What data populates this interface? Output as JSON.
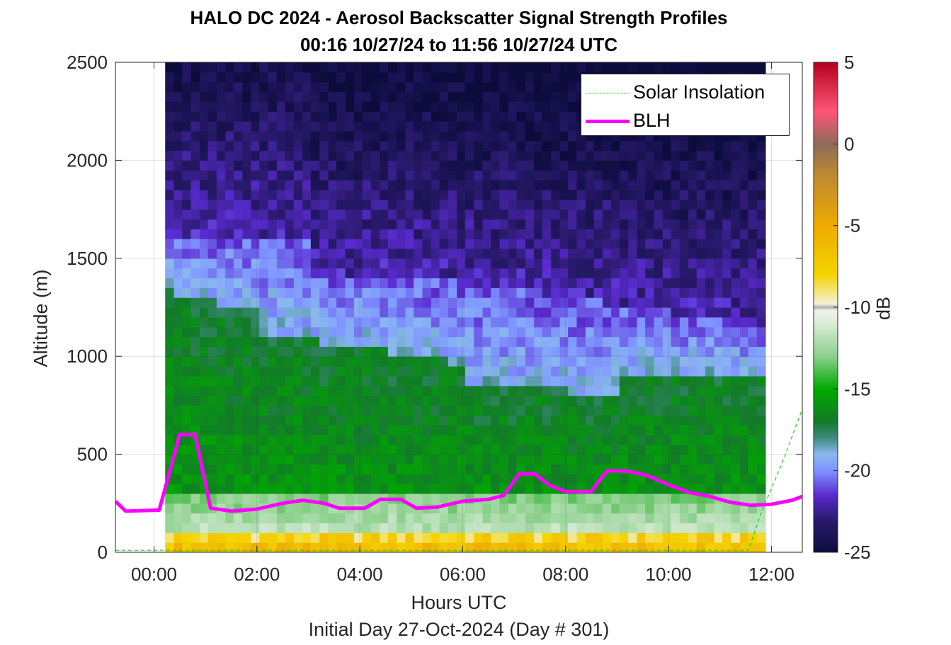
{
  "title_line1": "HALO DC 2024 - Aerosol Backscatter Signal Strength Profiles",
  "title_line2": "00:16 10/27/24 to 11:56 10/27/24  UTC",
  "xlabel": "Hours UTC",
  "xsublabel": "Initial Day 27-Oct-2024 (Day # 301)",
  "ylabel": "Altitude (m)",
  "colorbar_label": "dB",
  "legend": [
    {
      "label": "Solar Insolation",
      "color": "#22cc22",
      "style": "dashed"
    },
    {
      "label": "BLH",
      "color": "#ff00ff",
      "style": "solid"
    }
  ],
  "chart_data": {
    "type": "heatmap",
    "xlim": [
      -0.75,
      12.6
    ],
    "ylim": [
      0,
      2500
    ],
    "xticks": [
      0,
      2,
      4,
      6,
      8,
      10,
      12
    ],
    "xtick_labels": [
      "00:00",
      "02:00",
      "04:00",
      "06:00",
      "08:00",
      "10:00",
      "12:00"
    ],
    "yticks": [
      0,
      500,
      1000,
      1500,
      2000,
      2500
    ],
    "ytick_labels": [
      "0",
      "500",
      "1000",
      "1500",
      "2000",
      "2500"
    ],
    "grid": true,
    "legend_position": "top-right",
    "colorbar": {
      "clim": [
        -25,
        5
      ],
      "ticks": [
        5,
        0,
        -5,
        -10,
        -15,
        -20,
        -25
      ],
      "tick_labels": [
        "5",
        "0",
        "-5",
        "-10",
        "-15",
        "-20",
        "-25"
      ],
      "colormap_stops": [
        {
          "value": -25,
          "color": "#0c0c3c"
        },
        {
          "value": -23,
          "color": "#2a1a6e"
        },
        {
          "value": -21.5,
          "color": "#5a2bd0"
        },
        {
          "value": -20,
          "color": "#7f94ff"
        },
        {
          "value": -19,
          "color": "#8ab8f0"
        },
        {
          "value": -18,
          "color": "#3f8a80"
        },
        {
          "value": -17,
          "color": "#127a28"
        },
        {
          "value": -15,
          "color": "#00aa00"
        },
        {
          "value": -13,
          "color": "#8cd08c"
        },
        {
          "value": -11,
          "color": "#d8ecd8"
        },
        {
          "value": -10.2,
          "color": "#f2f2ea"
        },
        {
          "value": -10,
          "color": "#b0b0b0"
        },
        {
          "value": -9.8,
          "color": "#f4f0d8"
        },
        {
          "value": -8,
          "color": "#f5d400"
        },
        {
          "value": -5,
          "color": "#eeaa00"
        },
        {
          "value": -2,
          "color": "#c08a30"
        },
        {
          "value": 0,
          "color": "#8e6a5a"
        },
        {
          "value": 2,
          "color": "#ff5577"
        },
        {
          "value": 5,
          "color": "#b4001e"
        }
      ]
    },
    "heatmap": {
      "x_start": 0.3,
      "x_step": 0.1667,
      "y_start": 0,
      "y_step": 50,
      "profile_times_hours": [
        0.3,
        0.47,
        0.63,
        0.8,
        0.97,
        1.13,
        1.3,
        1.47,
        1.63,
        1.8,
        1.97,
        2.13,
        2.3,
        2.47,
        2.63,
        2.8,
        2.97,
        3.13,
        3.3,
        3.47,
        3.63,
        3.8,
        3.97,
        4.13,
        4.3,
        4.47,
        4.63,
        4.8,
        4.97,
        5.13,
        5.3,
        5.47,
        5.63,
        5.8,
        5.97,
        6.13,
        6.3,
        6.47,
        6.63,
        6.8,
        6.97,
        7.13,
        7.3,
        7.47,
        7.63,
        7.8,
        7.97,
        8.13,
        8.3,
        8.47,
        8.63,
        8.8,
        8.97,
        9.13,
        9.3,
        9.47,
        9.63,
        9.8,
        9.97,
        10.13,
        10.3,
        10.47,
        10.63,
        10.8,
        10.97,
        11.13,
        11.3,
        11.47,
        11.63,
        11.8
      ],
      "altitude_bins_m": [
        50,
        100,
        150,
        200,
        250,
        300,
        350,
        400,
        450,
        500,
        550,
        600,
        650,
        700,
        750,
        800,
        850,
        900,
        950,
        1000,
        1050,
        1100,
        1150,
        1200,
        1250,
        1300,
        1350,
        1400,
        1450,
        1500,
        1550,
        1600,
        1650,
        1700,
        1750,
        1800,
        1850,
        1900,
        1950,
        2000,
        2050,
        2100,
        2150,
        2200,
        2250,
        2300,
        2350,
        2400,
        2450,
        2500
      ]
    },
    "series": [
      {
        "name": "BLH",
        "x": [
          -0.75,
          -0.55,
          0.1,
          0.5,
          0.8,
          1.1,
          1.5,
          2.0,
          2.5,
          2.9,
          3.3,
          3.6,
          4.1,
          4.4,
          4.8,
          5.1,
          5.5,
          6.0,
          6.5,
          6.8,
          7.1,
          7.4,
          7.7,
          8.0,
          8.5,
          8.8,
          9.2,
          9.6,
          10.0,
          10.4,
          10.8,
          11.2,
          11.6,
          12.0,
          12.4,
          12.6
        ],
        "y": [
          260,
          210,
          215,
          600,
          600,
          225,
          210,
          220,
          250,
          265,
          250,
          225,
          225,
          270,
          270,
          225,
          230,
          260,
          270,
          290,
          400,
          400,
          340,
          310,
          310,
          415,
          415,
          390,
          345,
          305,
          285,
          255,
          240,
          245,
          265,
          285
        ]
      },
      {
        "name": "Solar Insolation",
        "x": [
          -0.75,
          11.55,
          11.8,
          12.2,
          12.6
        ],
        "y": [
          10,
          10,
          200,
          450,
          730
        ]
      }
    ]
  }
}
